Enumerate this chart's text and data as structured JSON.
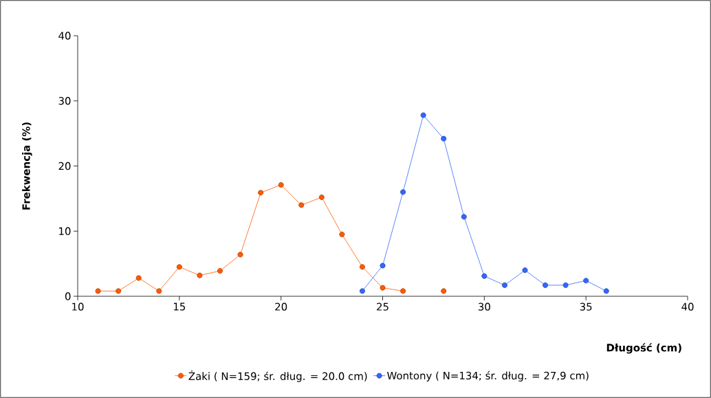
{
  "chart_data": {
    "type": "line",
    "xlabel": "Długość (cm)",
    "ylabel": "Frekwencja (%)",
    "xlim": [
      10,
      40
    ],
    "ylim": [
      0,
      40
    ],
    "xticks": [
      10,
      15,
      20,
      25,
      30,
      35,
      40
    ],
    "yticks": [
      0,
      10,
      20,
      30,
      40
    ],
    "grid": false,
    "legend": "bottom",
    "marker": "circle",
    "line_style": "solid",
    "series": [
      {
        "name": "Żaki ( N=159; śr. dług. = 20.0 cm)",
        "color": "#ff5a00",
        "x": [
          11,
          12,
          13,
          14,
          15,
          16,
          17,
          18,
          19,
          20,
          21,
          22,
          23,
          24,
          25,
          26,
          27,
          28
        ],
        "values": [
          0.8,
          0.8,
          2.8,
          0.8,
          4.5,
          3.2,
          3.9,
          6.4,
          15.9,
          17.1,
          14.0,
          15.2,
          9.5,
          4.5,
          1.3,
          0.8,
          null,
          0.8
        ]
      },
      {
        "name": "Wontony ( N=134; śr. dług. = 27,9 cm)",
        "color": "#3366ff",
        "x": [
          24,
          25,
          26,
          27,
          28,
          29,
          30,
          31,
          32,
          33,
          34,
          35,
          36
        ],
        "values": [
          0.8,
          4.7,
          16.0,
          27.8,
          24.2,
          12.2,
          3.1,
          1.7,
          4.0,
          1.7,
          1.7,
          2.4,
          0.8
        ]
      }
    ]
  }
}
